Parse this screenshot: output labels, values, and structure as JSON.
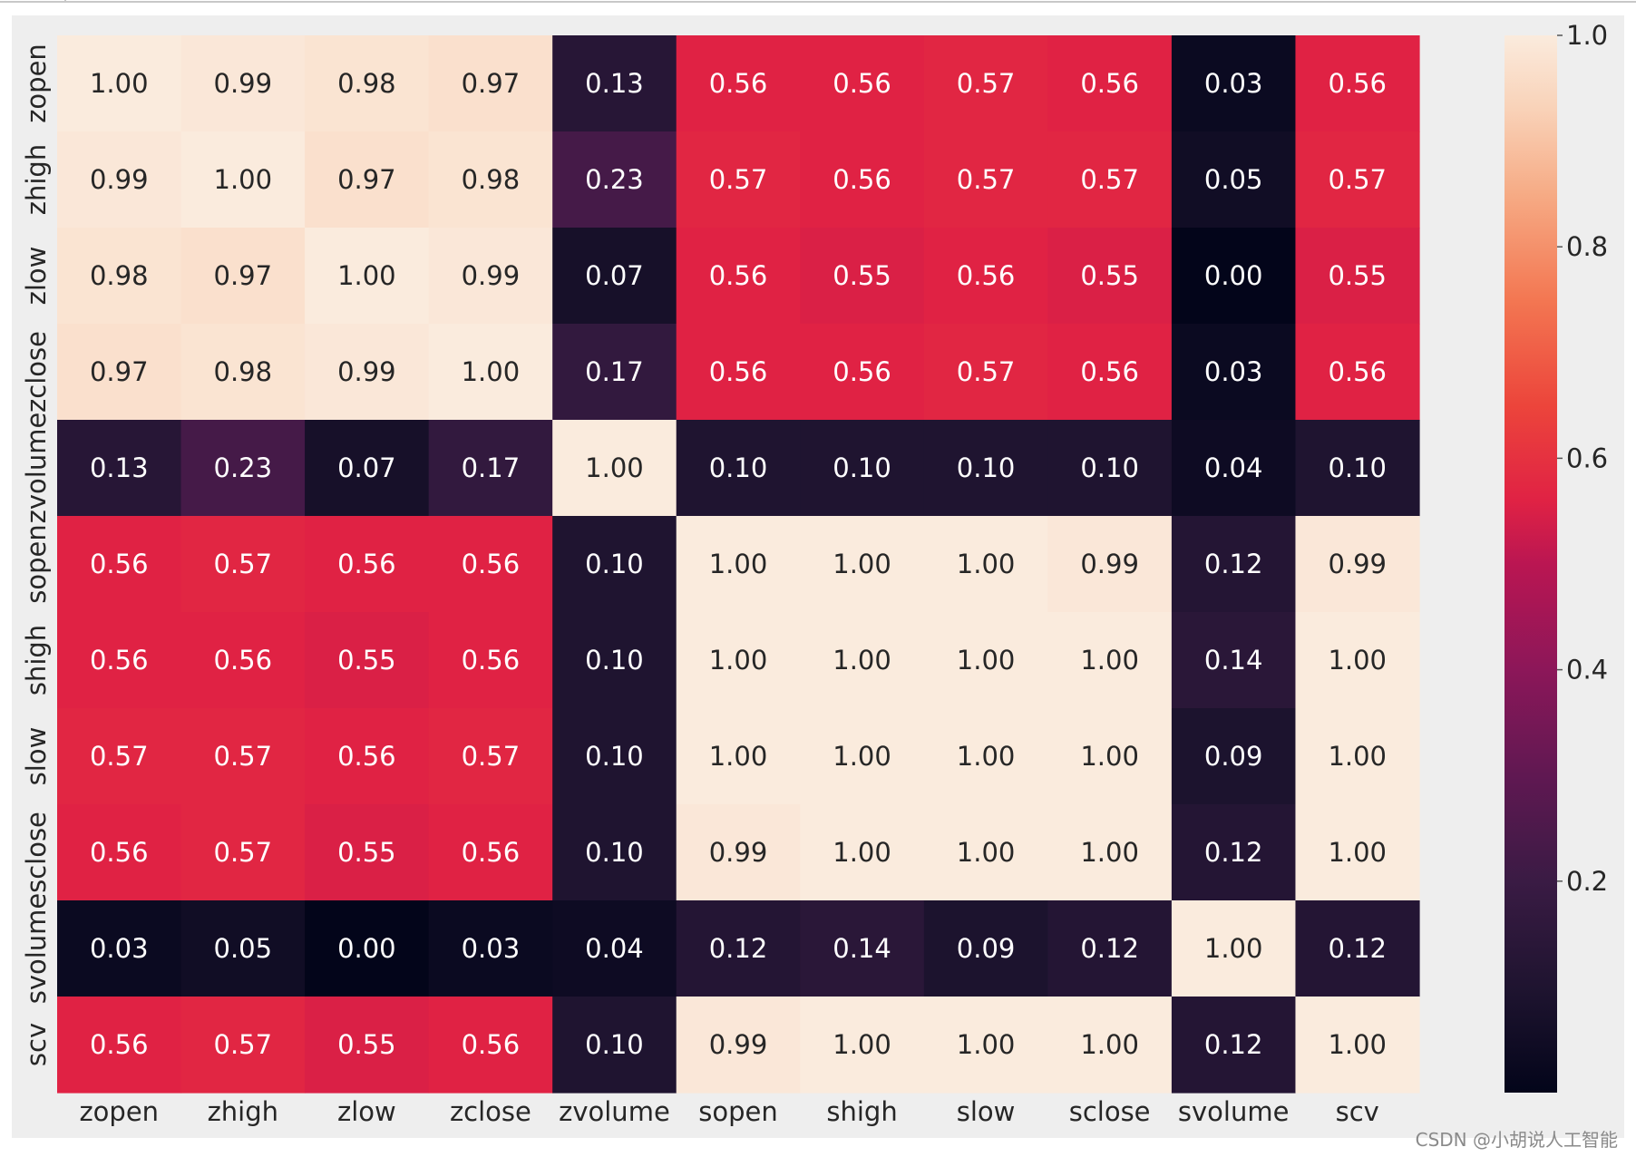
{
  "chart_data": {
    "type": "heatmap",
    "labels": [
      "zopen",
      "zhigh",
      "zlow",
      "zclose",
      "zvolume",
      "sopen",
      "shigh",
      "slow",
      "sclose",
      "svolume",
      "scv"
    ],
    "values": [
      [
        1.0,
        0.99,
        0.98,
        0.97,
        0.13,
        0.56,
        0.56,
        0.57,
        0.56,
        0.03,
        0.56
      ],
      [
        0.99,
        1.0,
        0.97,
        0.98,
        0.23,
        0.57,
        0.56,
        0.57,
        0.57,
        0.05,
        0.57
      ],
      [
        0.98,
        0.97,
        1.0,
        0.99,
        0.07,
        0.56,
        0.55,
        0.56,
        0.55,
        0.0,
        0.55
      ],
      [
        0.97,
        0.98,
        0.99,
        1.0,
        0.17,
        0.56,
        0.56,
        0.57,
        0.56,
        0.03,
        0.56
      ],
      [
        0.13,
        0.23,
        0.07,
        0.17,
        1.0,
        0.1,
        0.1,
        0.1,
        0.1,
        0.04,
        0.1
      ],
      [
        0.56,
        0.57,
        0.56,
        0.56,
        0.1,
        1.0,
        1.0,
        1.0,
        0.99,
        0.12,
        0.99
      ],
      [
        0.56,
        0.56,
        0.55,
        0.56,
        0.1,
        1.0,
        1.0,
        1.0,
        1.0,
        0.14,
        1.0
      ],
      [
        0.57,
        0.57,
        0.56,
        0.57,
        0.1,
        1.0,
        1.0,
        1.0,
        1.0,
        0.09,
        1.0
      ],
      [
        0.56,
        0.57,
        0.55,
        0.56,
        0.1,
        0.99,
        1.0,
        1.0,
        1.0,
        0.12,
        1.0
      ],
      [
        0.03,
        0.05,
        0.0,
        0.03,
        0.04,
        0.12,
        0.14,
        0.09,
        0.12,
        1.0,
        0.12
      ],
      [
        0.56,
        0.57,
        0.55,
        0.56,
        0.1,
        0.99,
        1.0,
        1.0,
        1.0,
        0.12,
        1.0
      ]
    ],
    "value_format": "0.00",
    "annotated": true,
    "colormap": "rocket",
    "colorbar": {
      "ticks": [
        0.2,
        0.4,
        0.6,
        0.8,
        1.0
      ],
      "tick_labels": [
        "0.2",
        "0.4",
        "0.6",
        "0.8",
        "1.0"
      ],
      "range": [
        0.0,
        1.0
      ],
      "placement": "right"
    }
  },
  "watermark": "CSDN @小胡说人工智能"
}
